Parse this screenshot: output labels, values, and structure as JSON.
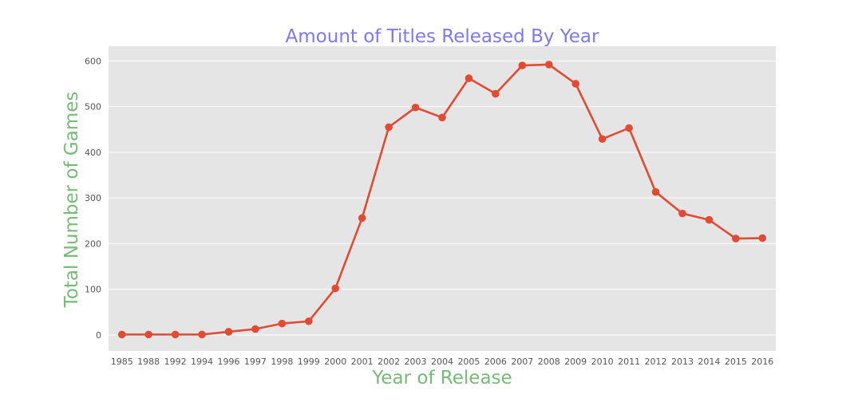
{
  "chart_data": {
    "type": "line",
    "title": "Amount of Titles Released By Year",
    "xlabel": "Year of Release",
    "ylabel": "Total Number of Games",
    "categories": [
      "1985",
      "1988",
      "1992",
      "1994",
      "1996",
      "1997",
      "1998",
      "1999",
      "2000",
      "2001",
      "2002",
      "2003",
      "2004",
      "2005",
      "2006",
      "2007",
      "2008",
      "2009",
      "2010",
      "2011",
      "2012",
      "2013",
      "2014",
      "2015",
      "2016"
    ],
    "series": [
      {
        "values": [
          1,
          1,
          1,
          1,
          7,
          13,
          25,
          30,
          102,
          256,
          455,
          498,
          476,
          562,
          528,
          590,
          592,
          550,
          429,
          453,
          313,
          266,
          252,
          211,
          212
        ]
      }
    ],
    "ylim": [
      -35,
      632
    ],
    "yticks": [
      0,
      100,
      200,
      300,
      400,
      500,
      600
    ],
    "grid": true,
    "colors": {
      "line": "#e24a33",
      "background": "#e5e5e5",
      "grid": "#ffffff",
      "title": "#7b7bef",
      "axis_labels": "#77bb77",
      "ticks": "#555555"
    }
  }
}
